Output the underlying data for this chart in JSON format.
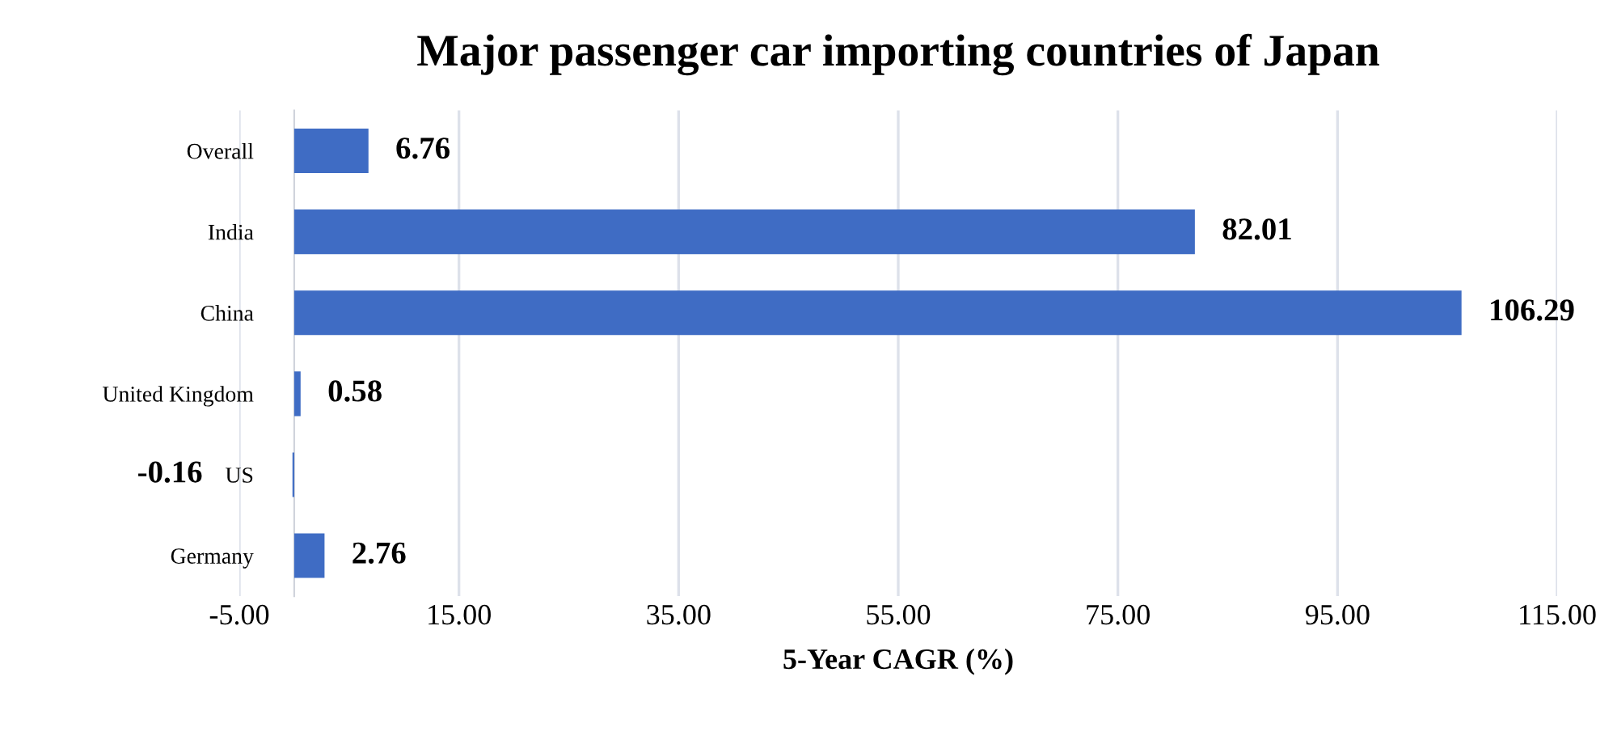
{
  "chart_data": {
    "type": "bar",
    "orientation": "horizontal",
    "title": "Major passenger car importing countries of Japan",
    "xlabel": "5-Year CAGR (%)",
    "categories": [
      "Overall",
      "India",
      "China",
      "United Kingdom",
      "US",
      "Germany"
    ],
    "values": [
      6.76,
      82.01,
      106.29,
      0.58,
      -0.16,
      2.76
    ],
    "color": "#3f6cc4",
    "value_labels": [
      "6.76",
      "82.01",
      "106.29",
      "0.58",
      "-0.16",
      "2.76"
    ],
    "xlim": [
      -5,
      115
    ],
    "xticks": [
      {
        "value": -5,
        "label": "-5.00"
      },
      {
        "value": 15,
        "label": "15.00"
      },
      {
        "value": 35,
        "label": "35.00"
      },
      {
        "value": 55,
        "label": "55.00"
      },
      {
        "value": 75,
        "label": "75.00"
      },
      {
        "value": 95,
        "label": "95.00"
      },
      {
        "value": 115,
        "label": "115.00"
      }
    ],
    "grid": "x"
  }
}
